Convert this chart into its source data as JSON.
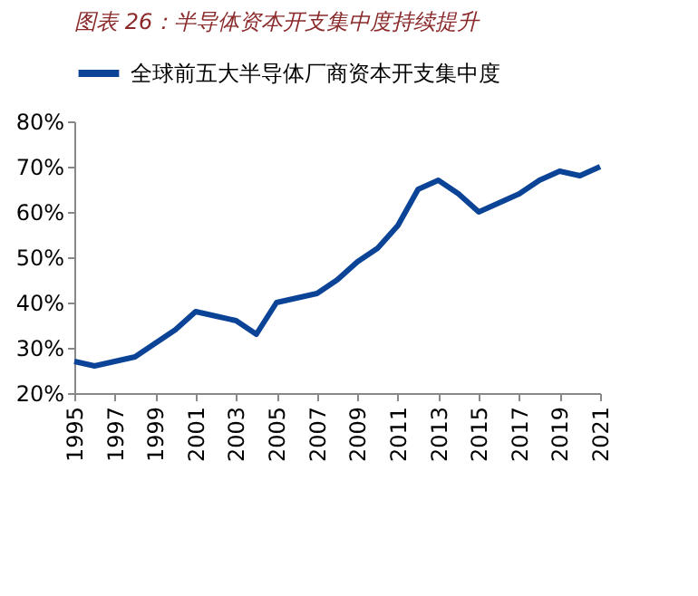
{
  "chart_data": {
    "type": "line",
    "title": "图表 26：半导体资本开支集中度持续提升",
    "x": [
      1995,
      1996,
      1997,
      1998,
      1999,
      2000,
      2001,
      2002,
      2003,
      2004,
      2005,
      2006,
      2007,
      2008,
      2009,
      2010,
      2011,
      2012,
      2013,
      2014,
      2015,
      2016,
      2017,
      2018,
      2019,
      2020,
      2021
    ],
    "series": [
      {
        "name": "全球前五大半导体厂商资本开支集中度",
        "color": "#0b4397",
        "values": [
          27,
          26,
          27,
          28,
          31,
          34,
          38,
          37,
          36,
          33,
          40,
          41,
          42,
          45,
          49,
          52,
          57,
          65,
          67,
          64,
          60,
          62,
          64,
          67,
          69,
          68,
          70
        ]
      }
    ],
    "xlim": [
      1995,
      2021
    ],
    "xticks": [
      1995,
      1997,
      1999,
      2001,
      2003,
      2005,
      2007,
      2009,
      2011,
      2013,
      2015,
      2017,
      2019,
      2021
    ],
    "ylim": [
      20,
      80
    ],
    "yticks": [
      {
        "value": 20,
        "label": "20%"
      },
      {
        "value": 30,
        "label": "30%"
      },
      {
        "value": 40,
        "label": "40%"
      },
      {
        "value": 50,
        "label": "50%"
      },
      {
        "value": 60,
        "label": "60%"
      },
      {
        "value": 70,
        "label": "70%"
      },
      {
        "value": 80,
        "label": "80%"
      }
    ],
    "grid": false,
    "legend": "top",
    "marker": "none",
    "line_style": "solid"
  }
}
